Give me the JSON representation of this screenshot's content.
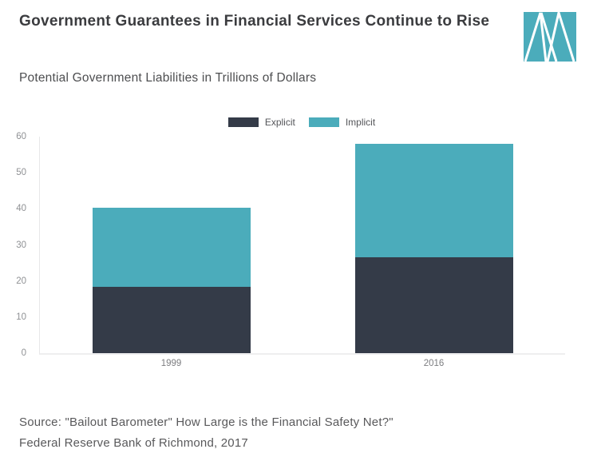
{
  "header": {
    "title": "Government Guarantees in Financial Services Continue to Rise",
    "subtitle": "Potential Government Liabilities in Trillions of Dollars",
    "logo": "marketplace-logo"
  },
  "chart_data": {
    "type": "bar",
    "stacked": true,
    "title": "Government Guarantees in Financial Services Continue to Rise",
    "subtitle": "Potential Government Liabilities in Trillions of Dollars",
    "categories": [
      "1999",
      "2016"
    ],
    "series": [
      {
        "name": "Explicit",
        "color": "#343B48",
        "values": [
          18.3,
          26.5
        ]
      },
      {
        "name": "Implicit",
        "color": "#4BACBB",
        "values": [
          21.9,
          31.5
        ]
      }
    ],
    "totals": [
      40.2,
      58
    ],
    "xlabel": "",
    "ylabel": "",
    "ylim": [
      0,
      60
    ],
    "yticks": [
      0,
      10,
      20,
      30,
      40,
      50,
      60
    ],
    "grid": false,
    "legend_position": "top-center"
  },
  "colors": {
    "explicit": "#343B48",
    "implicit": "#4BACBB",
    "logo_teal": "#4BACBB",
    "title_text": "#3b3c3f",
    "axis_text": "#8f9194",
    "background": "#ffffff"
  },
  "footer": {
    "source_line1": "Source: \"Bailout Barometer\" How Large is the Financial Safety Net?\"",
    "source_line2": "Federal Reserve Bank of Richmond, 2017"
  }
}
